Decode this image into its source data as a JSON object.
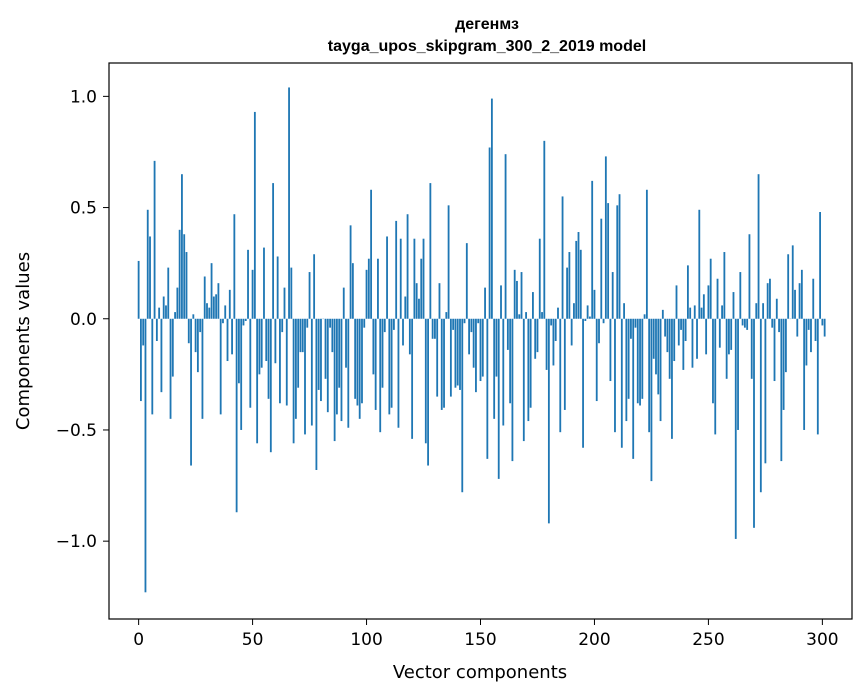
{
  "chart_data": {
    "type": "bar",
    "title": "дегенмз",
    "subtitle": "tayga_upos_skipgram_300_2_2019 model",
    "xlabel": "Vector components",
    "ylabel": "Components values",
    "xlim": [
      -13,
      313
    ],
    "ylim": [
      -1.35,
      1.15
    ],
    "xticks": [
      0,
      50,
      100,
      150,
      200,
      250,
      300
    ],
    "xtick_labels": [
      "0",
      "50",
      "100",
      "150",
      "200",
      "250",
      "300"
    ],
    "yticks": [
      -1.0,
      -0.5,
      0.0,
      0.5,
      1.0
    ],
    "ytick_labels": [
      "−1.0",
      "−0.5",
      "0.0",
      "0.5",
      "1.0"
    ],
    "grid": false,
    "legend": "none",
    "color": "#1f77b4",
    "series": [
      {
        "x_start": 0,
        "values": [
          0.26,
          -0.37,
          -0.12,
          -1.23,
          0.49,
          0.37,
          -0.43,
          0.71,
          -0.1,
          0.05,
          -0.33,
          0.1,
          0.06,
          0.23,
          -0.45,
          -0.26,
          0.03,
          0.14,
          0.4,
          0.65,
          0.38,
          0.3,
          -0.11,
          -0.66,
          0.02,
          -0.15,
          -0.24,
          -0.06,
          -0.45,
          0.19,
          0.07,
          0.05,
          0.25,
          0.1,
          0.11,
          0.16,
          -0.43,
          -0.02,
          0.06,
          -0.19,
          0.13,
          -0.16,
          0.47,
          -0.87,
          -0.29,
          -0.5,
          -0.03,
          -0.01,
          0.31,
          -0.4,
          0.22,
          0.93,
          -0.56,
          -0.25,
          -0.22,
          0.32,
          -0.19,
          -0.36,
          -0.6,
          0.61,
          -0.2,
          0.28,
          -0.38,
          -0.06,
          0.14,
          -0.39,
          1.04,
          0.23,
          -0.56,
          -0.45,
          -0.31,
          -0.15,
          -0.15,
          -0.52,
          -0.04,
          0.21,
          -0.48,
          0.29,
          -0.68,
          -0.32,
          -0.37,
          0.0,
          -0.27,
          -0.42,
          -0.04,
          -0.15,
          -0.55,
          -0.43,
          -0.31,
          -0.46,
          0.14,
          -0.22,
          -0.49,
          0.42,
          0.25,
          -0.36,
          -0.39,
          -0.45,
          -0.38,
          -0.04,
          0.22,
          0.27,
          0.58,
          -0.25,
          -0.41,
          0.27,
          -0.51,
          -0.31,
          -0.06,
          0.37,
          -0.43,
          -0.4,
          -0.05,
          0.44,
          -0.49,
          0.36,
          -0.12,
          0.1,
          0.47,
          -0.16,
          -0.54,
          0.36,
          0.16,
          0.09,
          0.27,
          0.36,
          -0.56,
          -0.66,
          0.61,
          -0.09,
          -0.09,
          -0.35,
          0.16,
          -0.41,
          -0.4,
          0.03,
          0.51,
          -0.35,
          -0.05,
          -0.31,
          -0.3,
          -0.32,
          -0.78,
          -0.02,
          0.34,
          -0.16,
          -0.06,
          -0.22,
          -0.33,
          -0.02,
          -0.28,
          -0.26,
          0.14,
          -0.63,
          0.77,
          0.99,
          -0.45,
          -0.26,
          -0.72,
          0.15,
          -0.48,
          0.74,
          -0.14,
          -0.38,
          -0.64,
          0.22,
          0.17,
          0.02,
          0.21,
          -0.55,
          0.03,
          -0.46,
          -0.4,
          0.12,
          -0.18,
          -0.15,
          0.36,
          0.03,
          0.8,
          -0.23,
          -0.92,
          -0.03,
          -0.21,
          -0.1,
          0.05,
          -0.51,
          0.55,
          -0.41,
          0.23,
          0.3,
          -0.12,
          0.07,
          0.35,
          0.39,
          0.31,
          -0.58,
          -0.01,
          0.06,
          0.01,
          0.62,
          0.13,
          -0.37,
          -0.11,
          0.45,
          -0.02,
          0.73,
          0.52,
          -0.28,
          0.21,
          -0.51,
          0.51,
          0.56,
          -0.58,
          0.07,
          -0.46,
          -0.36,
          -0.09,
          -0.63,
          -0.04,
          -0.38,
          -0.39,
          -0.36,
          0.02,
          0.58,
          -0.51,
          -0.73,
          -0.18,
          -0.25,
          -0.34,
          -0.46,
          0.04,
          -0.08,
          -0.15,
          -0.27,
          -0.54,
          -0.19,
          0.15,
          -0.12,
          -0.05,
          -0.23,
          -0.1,
          0.24,
          0.05,
          -0.22,
          0.06,
          -0.18,
          0.49,
          0.05,
          0.11,
          -0.16,
          0.15,
          0.27,
          -0.38,
          -0.52,
          0.18,
          -0.13,
          0.06,
          0.3,
          -0.27,
          -0.16,
          -0.14,
          0.12,
          -0.99,
          -0.5,
          0.21,
          -0.03,
          -0.04,
          -0.05,
          0.38,
          -0.27,
          -0.94,
          0.07,
          0.65,
          -0.78,
          0.07,
          -0.65,
          0.16,
          0.18,
          -0.04,
          -0.28,
          0.09,
          -0.06,
          -0.64,
          -0.41,
          -0.24,
          0.29,
          0.0,
          0.33,
          0.13,
          -0.08,
          0.16,
          0.22,
          -0.5,
          -0.21,
          -0.05,
          -0.15,
          0.18,
          -0.1,
          -0.52,
          0.48,
          -0.03,
          -0.08
        ]
      }
    ]
  }
}
